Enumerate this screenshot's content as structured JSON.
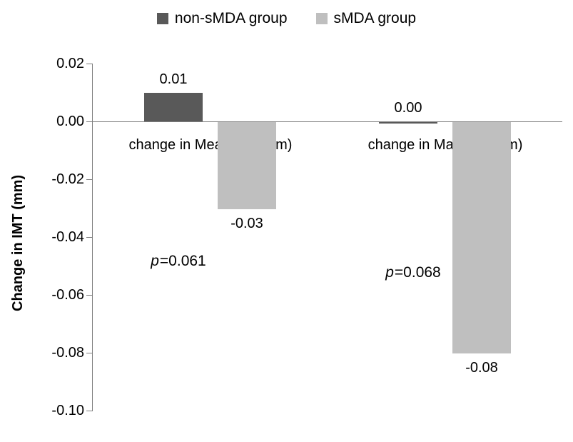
{
  "chart_data": {
    "type": "bar",
    "title": "",
    "ylabel": "Change in IMT (mm)",
    "xlabel": "",
    "ylim": [
      -0.1,
      0.02
    ],
    "yticks": [
      "0.02",
      "0.00",
      "-0.02",
      "-0.04",
      "-0.06",
      "-0.08",
      "-0.10"
    ],
    "grid": false,
    "legend_position": "top",
    "categories": [
      "change in Mean IMT(mm)",
      "change in Max IMT(mm)"
    ],
    "series": [
      {
        "name": "non-sMDA group",
        "color": "#595959",
        "values": [
          0.01,
          0.0
        ]
      },
      {
        "name": "sMDA group",
        "color": "#bfbfbf",
        "values": [
          -0.03,
          -0.08
        ]
      }
    ],
    "value_labels": [
      [
        "0.01",
        "0.00"
      ],
      [
        "-0.03",
        "-0.08"
      ]
    ],
    "annotations": [
      {
        "symbol": "p",
        "rest": "=0.061"
      },
      {
        "symbol": "p",
        "rest": "=0.068"
      }
    ],
    "axis_color": "#7f7f7f",
    "text_color": "#000000"
  }
}
